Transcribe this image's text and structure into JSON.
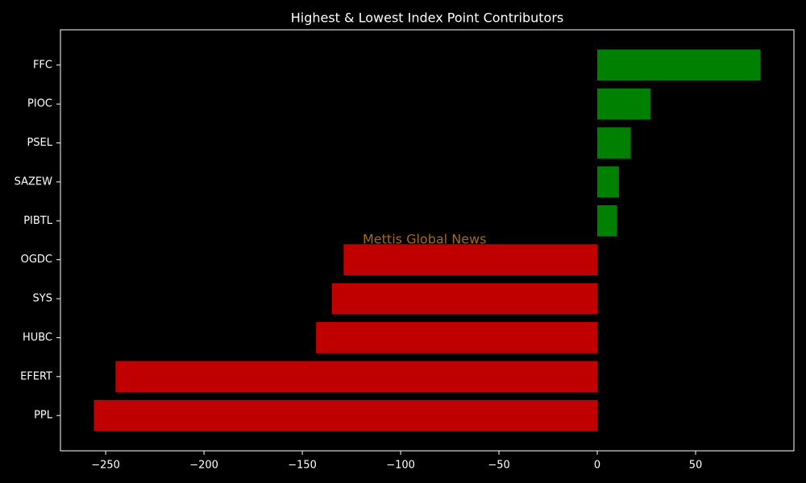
{
  "chart_data": {
    "type": "barh",
    "title": "Highest & Lowest Index Point Contributors",
    "watermark": "Mettis Global News",
    "categories": [
      "FFC",
      "PIOC",
      "PSEL",
      "SAZEW",
      "PIBTL",
      "OGDC",
      "SYS",
      "HUBC",
      "EFERT",
      "PPL"
    ],
    "values": [
      83,
      27,
      17,
      11,
      10,
      -129,
      -135,
      -143,
      -245,
      -256
    ],
    "colors": [
      "#008000",
      "#008000",
      "#008000",
      "#008000",
      "#008000",
      "#c00000",
      "#c00000",
      "#c00000",
      "#c00000",
      "#c00000"
    ],
    "xlim": [
      -273,
      100
    ],
    "xticks": [
      {
        "value": -250,
        "label": "−250"
      },
      {
        "value": -200,
        "label": "−200"
      },
      {
        "value": -150,
        "label": "−150"
      },
      {
        "value": -100,
        "label": "−100"
      },
      {
        "value": -50,
        "label": "−50"
      },
      0,
      50
    ],
    "grid": false
  }
}
